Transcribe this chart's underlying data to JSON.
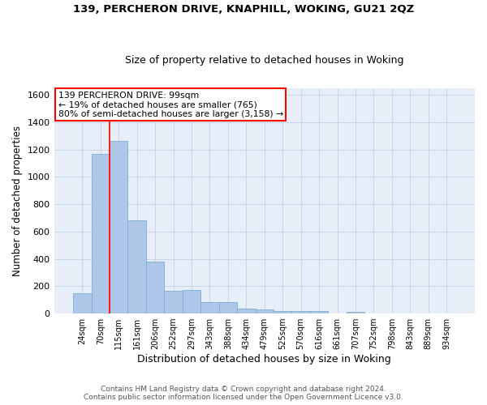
{
  "title1": "139, PERCHERON DRIVE, KNAPHILL, WOKING, GU21 2QZ",
  "title2": "Size of property relative to detached houses in Woking",
  "xlabel": "Distribution of detached houses by size in Woking",
  "ylabel": "Number of detached properties",
  "categories": [
    "24sqm",
    "70sqm",
    "115sqm",
    "161sqm",
    "206sqm",
    "252sqm",
    "297sqm",
    "343sqm",
    "388sqm",
    "434sqm",
    "479sqm",
    "525sqm",
    "570sqm",
    "616sqm",
    "661sqm",
    "707sqm",
    "752sqm",
    "798sqm",
    "843sqm",
    "889sqm",
    "934sqm"
  ],
  "values": [
    148,
    1170,
    1260,
    680,
    380,
    168,
    170,
    82,
    82,
    38,
    32,
    20,
    20,
    18,
    0,
    15,
    0,
    0,
    0,
    0,
    0
  ],
  "bar_color": "#aec6e8",
  "bar_edge_color": "#7aaed0",
  "annotation_text": "139 PERCHERON DRIVE: 99sqm\n← 19% of detached houses are smaller (765)\n80% of semi-detached houses are larger (3,158) →",
  "ylim": [
    0,
    1650
  ],
  "yticks": [
    0,
    200,
    400,
    600,
    800,
    1000,
    1200,
    1400,
    1600
  ],
  "footer1": "Contains HM Land Registry data © Crown copyright and database right 2024.",
  "footer2": "Contains public sector information licensed under the Open Government Licence v3.0.",
  "grid_color": "#c8d4e8",
  "bg_color": "#e8eef8"
}
